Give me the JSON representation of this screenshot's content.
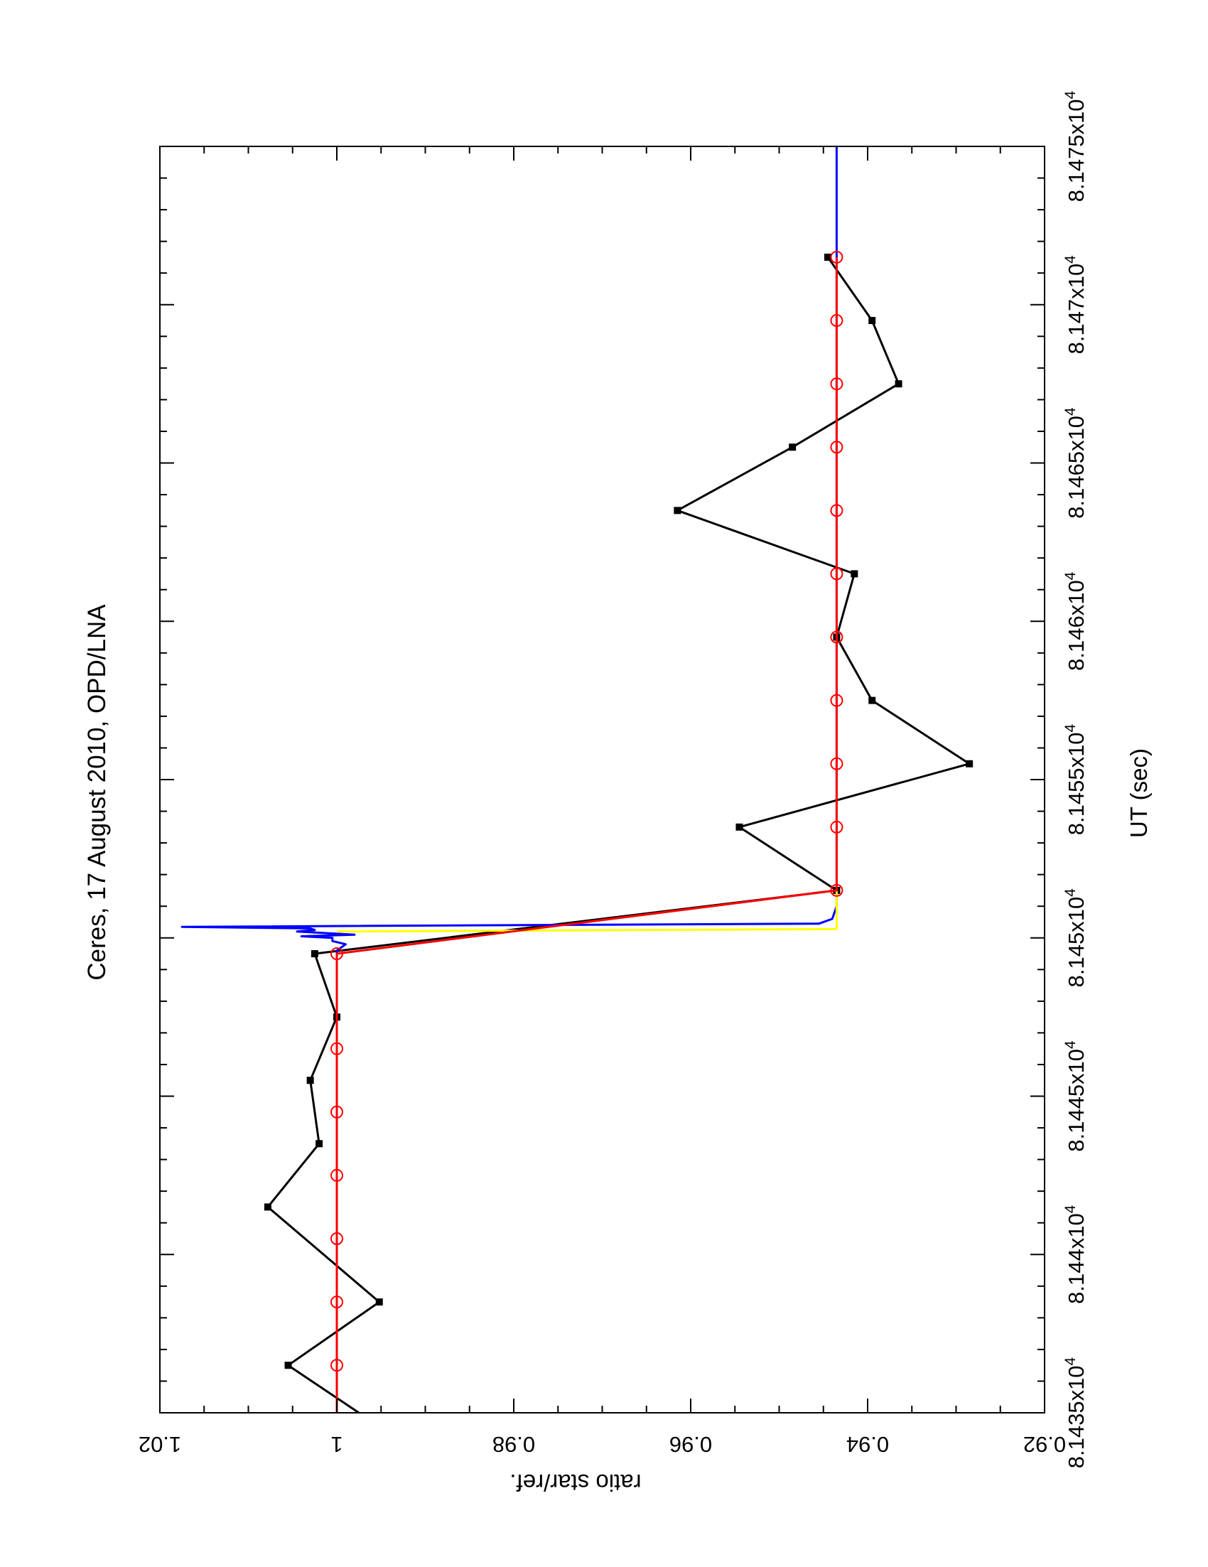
{
  "chart_data": {
    "type": "line",
    "title": "Ceres, 17 August 2010, OPD/LNA",
    "xlabel": "UT (sec)",
    "ylabel": "ratio star/ref.",
    "orientation": "rotated 90 degrees clockwise (x axis runs bottom to top, y axis runs left to right decreasing)",
    "xlim": [
      81435,
      81475
    ],
    "ylim": [
      0.92,
      1.02
    ],
    "x_ticks": [
      {
        "value": 81435,
        "label": "8.1435x10^4"
      },
      {
        "value": 81440,
        "label": "8.144x10^4"
      },
      {
        "value": 81445,
        "label": "8.1445x10^4"
      },
      {
        "value": 81450,
        "label": "8.145x10^4"
      },
      {
        "value": 81455,
        "label": "8.1455x10^4"
      },
      {
        "value": 81460,
        "label": "8.146x10^4"
      },
      {
        "value": 81465,
        "label": "8.1465x10^4"
      },
      {
        "value": 81470,
        "label": "8.147x10^4"
      },
      {
        "value": 81475,
        "label": "8.1475x10^4"
      }
    ],
    "y_ticks": [
      {
        "value": 1.02,
        "label": "1.02"
      },
      {
        "value": 1.0,
        "label": "1"
      },
      {
        "value": 0.98,
        "label": "0.98"
      },
      {
        "value": 0.96,
        "label": "0.96"
      },
      {
        "value": 0.94,
        "label": "0.94"
      },
      {
        "value": 0.92,
        "label": "0.92"
      }
    ],
    "grid": false,
    "legend": "none",
    "series": [
      {
        "style": "black line with square markers",
        "color": "#000000",
        "x": [
          81435,
          81436.5,
          81438.5,
          81441.5,
          81443.5,
          81445.5,
          81447.5,
          81449.5,
          81451.5,
          81453.5,
          81455.5,
          81457.5,
          81459.5,
          81461.5,
          81463.5,
          81465.5,
          81467.5,
          81469.5,
          81471.5
        ],
        "y": [
          0.9975,
          1.0055,
          0.9952,
          1.0078,
          1.002,
          1.003,
          1.0,
          1.0025,
          0.9435,
          0.9545,
          0.9285,
          0.9395,
          0.9435,
          0.9415,
          0.9615,
          0.9485,
          0.9365,
          0.9395,
          0.9445
        ],
        "show_markers": [
          false,
          true,
          true,
          true,
          true,
          true,
          true,
          true,
          true,
          true,
          true,
          true,
          true,
          true,
          true,
          true,
          true,
          true,
          true
        ]
      },
      {
        "style": "blue model line",
        "color": "#0000ff",
        "x": [
          81435,
          81449.6,
          81449.8,
          81449.9,
          81450,
          81450.05,
          81450.1,
          81450.2,
          81450.25,
          81450.3,
          81450.35,
          81450.45,
          81450.6,
          81451.0,
          81451.2,
          81475
        ],
        "y": [
          1.0,
          1.0,
          0.999,
          1.0005,
          1.0005,
          1.004,
          0.998,
          1.0045,
          1.0025,
          1.003,
          1.0175,
          0.9455,
          0.944,
          0.9435,
          0.9435,
          0.9435
        ],
        "show_markers": false
      },
      {
        "style": "yellow model line",
        "color": "#ffff00",
        "x": [
          81450.2,
          81450.28,
          81451.0,
          81451.5
        ],
        "y": [
          1.0,
          0.9435,
          0.9435,
          0.9435
        ],
        "show_markers": false
      },
      {
        "style": "red line with circle markers",
        "color": "#ff0000",
        "x": [
          81435,
          81436.5,
          81438.5,
          81440.5,
          81442.5,
          81444.5,
          81446.5,
          81449.5,
          81451.5,
          81453.5,
          81455.5,
          81457.5,
          81459.5,
          81461.5,
          81463.5,
          81465.5,
          81467.5,
          81469.5,
          81471.5
        ],
        "y": [
          1.0,
          1.0,
          1.0,
          1.0,
          1.0,
          1.0,
          1.0,
          1.0,
          0.9435,
          0.9435,
          0.9435,
          0.9435,
          0.9435,
          0.9435,
          0.9435,
          0.9435,
          0.9435,
          0.9435,
          0.9435
        ],
        "show_markers": [
          false,
          true,
          true,
          true,
          true,
          true,
          true,
          true,
          true,
          true,
          true,
          true,
          true,
          true,
          true,
          true,
          true,
          true,
          true
        ]
      }
    ]
  }
}
